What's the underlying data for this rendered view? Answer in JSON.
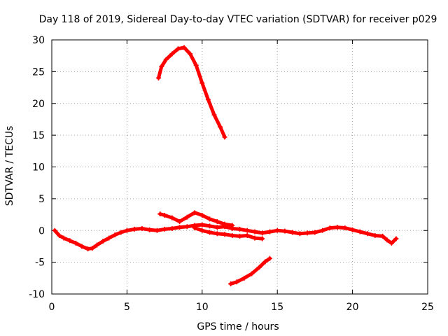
{
  "chart_data": {
    "type": "scatter",
    "title": "Day 118 of 2019, Sidereal Day-to-day VTEC variation (SDTVAR) for receiver p029",
    "xlabel": "GPS time / hours",
    "ylabel": "SDTVAR / TECUs",
    "xlim": [
      0,
      25
    ],
    "ylim": [
      -10,
      30
    ],
    "xticks": [
      0,
      5,
      10,
      15,
      20,
      25
    ],
    "yticks": [
      -10,
      -5,
      0,
      5,
      10,
      15,
      20,
      25,
      30
    ],
    "grid": true,
    "marker": "+",
    "color": "#ff0000",
    "series": [
      {
        "name": "main-band",
        "x": [
          0.2,
          0.5,
          0.8,
          1.2,
          1.6,
          2.0,
          2.4,
          2.7,
          3.0,
          3.4,
          3.8,
          4.2,
          4.6,
          5.0,
          5.5,
          6.0,
          6.5,
          7.0,
          7.5,
          8.0,
          8.5,
          9.0,
          9.5,
          10.0,
          10.5,
          11.0,
          11.5,
          12.0,
          12.5,
          13.0,
          13.5,
          14.0,
          14.5,
          15.0,
          15.5,
          16.0,
          16.5,
          17.0,
          17.5,
          18.0,
          18.5,
          19.0,
          19.5,
          20.0,
          20.5,
          21.0,
          21.5,
          22.0,
          22.3,
          22.6,
          22.9
        ],
        "y": [
          0.0,
          -0.8,
          -1.2,
          -1.6,
          -2.0,
          -2.5,
          -2.9,
          -2.8,
          -2.3,
          -1.7,
          -1.2,
          -0.7,
          -0.3,
          0.0,
          0.2,
          0.3,
          0.1,
          0.0,
          0.2,
          0.3,
          0.5,
          0.6,
          0.8,
          0.9,
          0.7,
          0.5,
          0.6,
          0.3,
          0.2,
          0.0,
          -0.2,
          -0.4,
          -0.2,
          0.0,
          -0.1,
          -0.3,
          -0.5,
          -0.4,
          -0.3,
          0.0,
          0.4,
          0.5,
          0.4,
          0.1,
          -0.2,
          -0.5,
          -0.8,
          -0.9,
          -1.5,
          -2.0,
          -1.3
        ]
      },
      {
        "name": "upper-branch",
        "x": [
          7.2,
          7.5,
          8.0,
          8.5,
          9.0,
          9.5,
          10.0,
          10.5,
          11.0,
          11.5,
          12.0
        ],
        "y": [
          2.6,
          2.4,
          2.0,
          1.4,
          2.1,
          2.8,
          2.4,
          1.8,
          1.4,
          1.0,
          0.8
        ]
      },
      {
        "name": "lower-band",
        "x": [
          9.5,
          10.0,
          10.5,
          11.0,
          11.5,
          12.0,
          12.5,
          13.0,
          13.5,
          14.0
        ],
        "y": [
          0.4,
          0.0,
          -0.3,
          -0.5,
          -0.6,
          -0.8,
          -0.9,
          -0.8,
          -1.2,
          -1.3
        ]
      },
      {
        "name": "bottom-branch",
        "x": [
          11.9,
          12.3,
          12.8,
          13.3,
          13.8,
          14.2,
          14.5
        ],
        "y": [
          -8.4,
          -8.1,
          -7.5,
          -6.8,
          -5.8,
          -4.9,
          -4.4
        ]
      },
      {
        "name": "arc",
        "x": [
          7.1,
          7.3,
          7.6,
          8.0,
          8.4,
          8.8,
          9.2,
          9.6,
          10.0,
          10.4,
          10.8,
          11.2,
          11.5
        ],
        "y": [
          24.0,
          25.8,
          26.9,
          27.8,
          28.6,
          28.8,
          27.8,
          26.0,
          23.2,
          20.6,
          18.2,
          16.3,
          14.7
        ]
      }
    ]
  }
}
